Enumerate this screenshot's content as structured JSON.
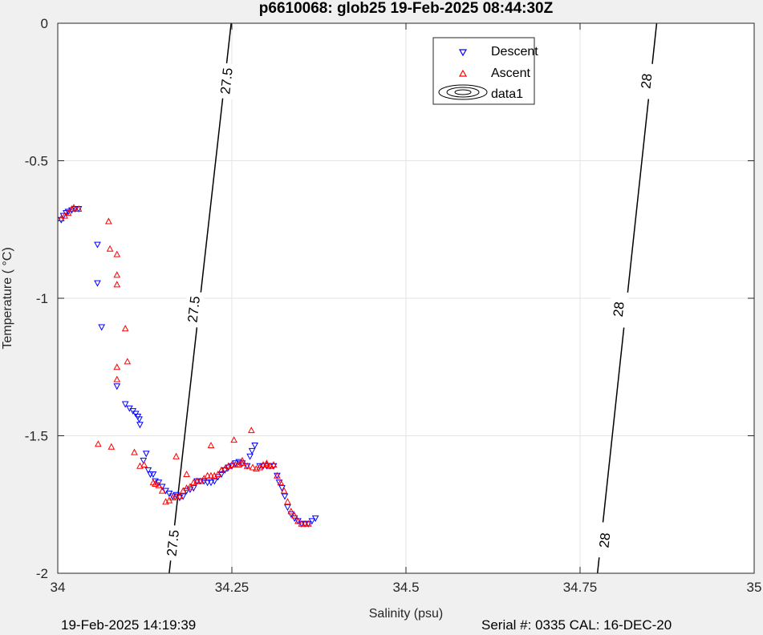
{
  "chart_data": {
    "type": "scatter",
    "title": "p6610068: glob25 19-Feb-2025 08:44:30Z",
    "xlabel": "Salinity (psu)",
    "ylabel": "Temperature (   °C)",
    "xlim": [
      34,
      35
    ],
    "ylim": [
      -2,
      0
    ],
    "x_ticks": [
      34,
      34.25,
      34.5,
      34.75,
      35
    ],
    "x_tick_labels": [
      "34",
      "34.25",
      "34.5",
      "34.75",
      "35"
    ],
    "y_ticks": [
      0,
      -0.5,
      -1,
      -1.5,
      -2
    ],
    "y_tick_labels": [
      "0",
      "-0.5",
      "-1",
      "-1.5",
      "-2"
    ],
    "grid": true,
    "legend": {
      "placement": "top-center",
      "entries": [
        "Descent",
        "Ascent",
        "data1"
      ]
    },
    "contours": [
      {
        "level_label": "27.5",
        "points": [
          [
            34.156,
            -2.0
          ],
          [
            34.214,
            -1.2
          ],
          [
            34.25,
            -0.7
          ],
          [
            34.249,
            0.0
          ],
          [
            34.228,
            -0.4
          ]
        ],
        "line": [
          [
            34.16,
            -2.0
          ],
          [
            34.249,
            0.0
          ]
        ],
        "label_positions": [
          [
            34.165,
            -1.89
          ],
          [
            34.195,
            -1.04
          ],
          [
            34.242,
            -0.21
          ]
        ]
      },
      {
        "level_label": "28",
        "line": [
          [
            34.775,
            -2.0
          ],
          [
            34.86,
            0.0
          ]
        ],
        "label_positions": [
          [
            34.785,
            -1.88
          ],
          [
            34.805,
            -1.04
          ],
          [
            34.845,
            -0.21
          ]
        ]
      }
    ],
    "series": [
      {
        "name": "Descent",
        "color": "#0000ff",
        "marker": "triangle-down",
        "points": [
          [
            34.005,
            -0.715
          ],
          [
            34.008,
            -0.7
          ],
          [
            34.012,
            -0.69
          ],
          [
            34.015,
            -0.685
          ],
          [
            34.02,
            -0.68
          ],
          [
            34.025,
            -0.675
          ],
          [
            34.03,
            -0.675
          ],
          [
            34.057,
            -0.805
          ],
          [
            34.057,
            -0.945
          ],
          [
            34.063,
            -1.105
          ],
          [
            34.085,
            -1.32
          ],
          [
            34.097,
            -1.385
          ],
          [
            34.103,
            -1.4
          ],
          [
            34.108,
            -1.41
          ],
          [
            34.112,
            -1.42
          ],
          [
            34.115,
            -1.43
          ],
          [
            34.117,
            -1.44
          ],
          [
            34.118,
            -1.46
          ],
          [
            34.123,
            -1.59
          ],
          [
            34.127,
            -1.565
          ],
          [
            34.13,
            -1.625
          ],
          [
            34.133,
            -1.64
          ],
          [
            34.137,
            -1.64
          ],
          [
            34.14,
            -1.665
          ],
          [
            34.145,
            -1.67
          ],
          [
            34.15,
            -1.685
          ],
          [
            34.155,
            -1.7
          ],
          [
            34.16,
            -1.71
          ],
          [
            34.165,
            -1.72
          ],
          [
            34.17,
            -1.715
          ],
          [
            34.175,
            -1.725
          ],
          [
            34.18,
            -1.72
          ],
          [
            34.185,
            -1.7
          ],
          [
            34.19,
            -1.695
          ],
          [
            34.195,
            -1.69
          ],
          [
            34.2,
            -1.665
          ],
          [
            34.205,
            -1.665
          ],
          [
            34.21,
            -1.665
          ],
          [
            34.215,
            -1.67
          ],
          [
            34.22,
            -1.67
          ],
          [
            34.225,
            -1.665
          ],
          [
            34.23,
            -1.65
          ],
          [
            34.235,
            -1.64
          ],
          [
            34.24,
            -1.625
          ],
          [
            34.245,
            -1.615
          ],
          [
            34.25,
            -1.61
          ],
          [
            34.255,
            -1.6
          ],
          [
            34.26,
            -1.595
          ],
          [
            34.265,
            -1.6
          ],
          [
            34.272,
            -1.61
          ],
          [
            34.276,
            -1.575
          ],
          [
            34.279,
            -1.555
          ],
          [
            34.283,
            -1.535
          ],
          [
            34.29,
            -1.61
          ],
          [
            34.295,
            -1.61
          ],
          [
            34.3,
            -1.61
          ],
          [
            34.305,
            -1.61
          ],
          [
            34.31,
            -1.61
          ],
          [
            34.315,
            -1.645
          ],
          [
            34.318,
            -1.67
          ],
          [
            34.322,
            -1.69
          ],
          [
            34.326,
            -1.72
          ],
          [
            34.33,
            -1.76
          ],
          [
            34.335,
            -1.785
          ],
          [
            34.34,
            -1.8
          ],
          [
            34.345,
            -1.81
          ],
          [
            34.35,
            -1.82
          ],
          [
            34.355,
            -1.82
          ],
          [
            34.36,
            -1.82
          ],
          [
            34.365,
            -1.81
          ],
          [
            34.37,
            -1.8
          ]
        ]
      },
      {
        "name": "Ascent",
        "color": "#ff0000",
        "marker": "triangle-up",
        "points": [
          [
            34.005,
            -0.71
          ],
          [
            34.01,
            -0.7
          ],
          [
            34.015,
            -0.69
          ],
          [
            34.02,
            -0.675
          ],
          [
            34.023,
            -0.67
          ],
          [
            34.03,
            -0.675
          ],
          [
            34.073,
            -0.72
          ],
          [
            34.075,
            -0.82
          ],
          [
            34.085,
            -0.84
          ],
          [
            34.085,
            -0.915
          ],
          [
            34.085,
            -0.95
          ],
          [
            34.097,
            -1.11
          ],
          [
            34.1,
            -1.23
          ],
          [
            34.085,
            -1.25
          ],
          [
            34.085,
            -1.295
          ],
          [
            34.058,
            -1.53
          ],
          [
            34.077,
            -1.54
          ],
          [
            34.11,
            -1.56
          ],
          [
            34.118,
            -1.61
          ],
          [
            34.124,
            -1.605
          ],
          [
            34.137,
            -1.67
          ],
          [
            34.14,
            -1.675
          ],
          [
            34.145,
            -1.68
          ],
          [
            34.15,
            -1.7
          ],
          [
            34.155,
            -1.74
          ],
          [
            34.16,
            -1.735
          ],
          [
            34.165,
            -1.725
          ],
          [
            34.17,
            -1.72
          ],
          [
            34.175,
            -1.72
          ],
          [
            34.18,
            -1.7
          ],
          [
            34.185,
            -1.69
          ],
          [
            34.19,
            -1.685
          ],
          [
            34.195,
            -1.67
          ],
          [
            34.2,
            -1.665
          ],
          [
            34.205,
            -1.665
          ],
          [
            34.21,
            -1.655
          ],
          [
            34.215,
            -1.645
          ],
          [
            34.22,
            -1.645
          ],
          [
            34.225,
            -1.645
          ],
          [
            34.23,
            -1.64
          ],
          [
            34.235,
            -1.625
          ],
          [
            34.24,
            -1.62
          ],
          [
            34.245,
            -1.61
          ],
          [
            34.25,
            -1.605
          ],
          [
            34.255,
            -1.605
          ],
          [
            34.26,
            -1.605
          ],
          [
            34.265,
            -1.6
          ],
          [
            34.272,
            -1.61
          ],
          [
            34.28,
            -1.615
          ],
          [
            34.285,
            -1.62
          ],
          [
            34.29,
            -1.615
          ],
          [
            34.295,
            -1.605
          ],
          [
            34.3,
            -1.605
          ],
          [
            34.305,
            -1.61
          ],
          [
            34.31,
            -1.605
          ],
          [
            34.315,
            -1.645
          ],
          [
            34.32,
            -1.67
          ],
          [
            34.325,
            -1.7
          ],
          [
            34.33,
            -1.74
          ],
          [
            34.335,
            -1.775
          ],
          [
            34.34,
            -1.79
          ],
          [
            34.345,
            -1.81
          ],
          [
            34.35,
            -1.82
          ],
          [
            34.355,
            -1.82
          ],
          [
            34.36,
            -1.82
          ],
          [
            34.253,
            -1.515
          ],
          [
            34.278,
            -1.48
          ],
          [
            34.22,
            -1.535
          ],
          [
            34.17,
            -1.575
          ],
          [
            34.185,
            -1.64
          ],
          [
            34.2,
            -1.665
          ],
          [
            34.265,
            -1.59
          ],
          [
            34.3,
            -1.6
          ],
          [
            34.235,
            -1.625
          ],
          [
            34.175,
            -1.72
          ]
        ]
      }
    ]
  },
  "footer": {
    "timestamp": "19-Feb-2025 14:19:39",
    "serial": "Serial #: 0335  CAL: 16-DEC-20"
  }
}
